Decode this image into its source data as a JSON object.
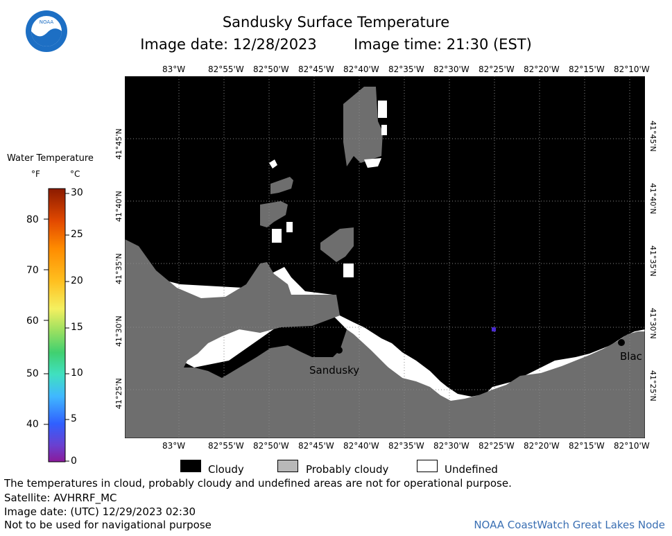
{
  "title": "Sandusky Surface Temperature",
  "image_date_label": "Image date: 12/28/2023",
  "image_time_label": "Image time: 21:30 (EST)",
  "logo": {
    "text": "NOAA",
    "colors": {
      "ring": "#1d6fc4",
      "inner": "#ffffff",
      "bird": "#1d6fc4"
    }
  },
  "colorbar": {
    "title": "Water Temperature",
    "unit_f": "°F",
    "unit_c": "°C",
    "f_ticks": [
      "80",
      "70",
      "60",
      "50",
      "40"
    ],
    "c_ticks": [
      "30",
      "25",
      "20",
      "15",
      "10",
      "5",
      "0"
    ],
    "colors": [
      "#8b1a00",
      "#e34a00",
      "#ff8c00",
      "#ffc020",
      "#f4f060",
      "#9be060",
      "#40d070",
      "#40e0c0",
      "#40b8ff",
      "#3060ff",
      "#6a40d0",
      "#8a1a9a"
    ]
  },
  "map": {
    "lon_labels": [
      "83°W",
      "82°55'W",
      "82°50'W",
      "82°45'W",
      "82°40'W",
      "82°35'W",
      "82°30'W",
      "82°25'W",
      "82°20'W",
      "82°15'W",
      "82°10'W"
    ],
    "lat_labels": [
      "41°45'N",
      "41°40'N",
      "41°35'N",
      "41°30'N",
      "41°25'N"
    ],
    "places": [
      {
        "name": "Sandusky"
      },
      {
        "name": "Blac"
      }
    ],
    "colors": {
      "cloudy": "#000000",
      "probably_cloudy": "#6e6e6e",
      "undefined": "#ffffff",
      "pixel_marker": "#4a2bd0"
    }
  },
  "legend": {
    "cloudy": "Cloudy",
    "probably_cloudy": "Probably cloudy",
    "undefined": "Undefined"
  },
  "footer": {
    "note": "The temperatures in cloud, probably cloudy and undefined areas are not for operational purpose.",
    "satellite": "Satellite: AVHRRF_MC",
    "utc_date": "Image date: (UTC) 12/29/2023  02:30",
    "nav": "Not to be used for navigational purpose",
    "credit": "NOAA CoastWatch Great Lakes Node"
  }
}
